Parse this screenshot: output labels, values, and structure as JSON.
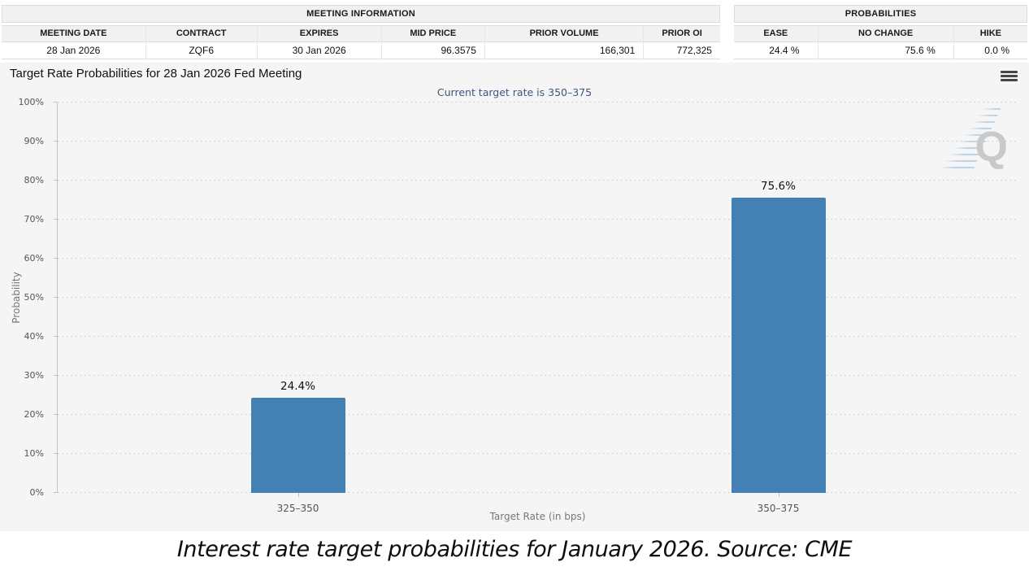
{
  "meeting_information": {
    "title": "MEETING INFORMATION",
    "columns": [
      "MEETING DATE",
      "CONTRACT",
      "EXPIRES",
      "MID PRICE",
      "PRIOR VOLUME",
      "PRIOR OI"
    ],
    "values": [
      "28 Jan 2026",
      "ZQF6",
      "30 Jan 2026",
      "96.3575",
      "166,301",
      "772,325"
    ]
  },
  "probabilities": {
    "title": "PROBABILITIES",
    "columns": [
      "EASE",
      "NO CHANGE",
      "HIKE"
    ],
    "values": [
      "24.4 %",
      "75.6 %",
      "0.0 %"
    ]
  },
  "chart_data": {
    "type": "bar",
    "title": "Target Rate Probabilities for 28 Jan 2026 Fed Meeting",
    "subtitle": "Current target rate is 350–375",
    "categories": [
      "325–350",
      "350–375"
    ],
    "values": [
      24.4,
      75.6
    ],
    "value_labels": [
      "24.4%",
      "75.6%"
    ],
    "xlabel": "Target Rate (in bps)",
    "ylabel": "Probability",
    "ylim": [
      0,
      100
    ],
    "ytick_step": 10,
    "ytick_suffix": "%",
    "grid": "dotted horizontal",
    "legend": "none",
    "bar_color": "#4381b5"
  },
  "icons": {
    "menu": "hamburger-icon",
    "watermark_letter": "Q"
  },
  "colors": {
    "bar": "#4381b5",
    "panel_bg": "#f5f5f5",
    "table_header_bg": "#f1f1f1",
    "subtitle_text": "#3f5680",
    "grid": "#c9c9c9"
  },
  "caption": "Interest rate target probabilities for January 2026. Source: CME"
}
